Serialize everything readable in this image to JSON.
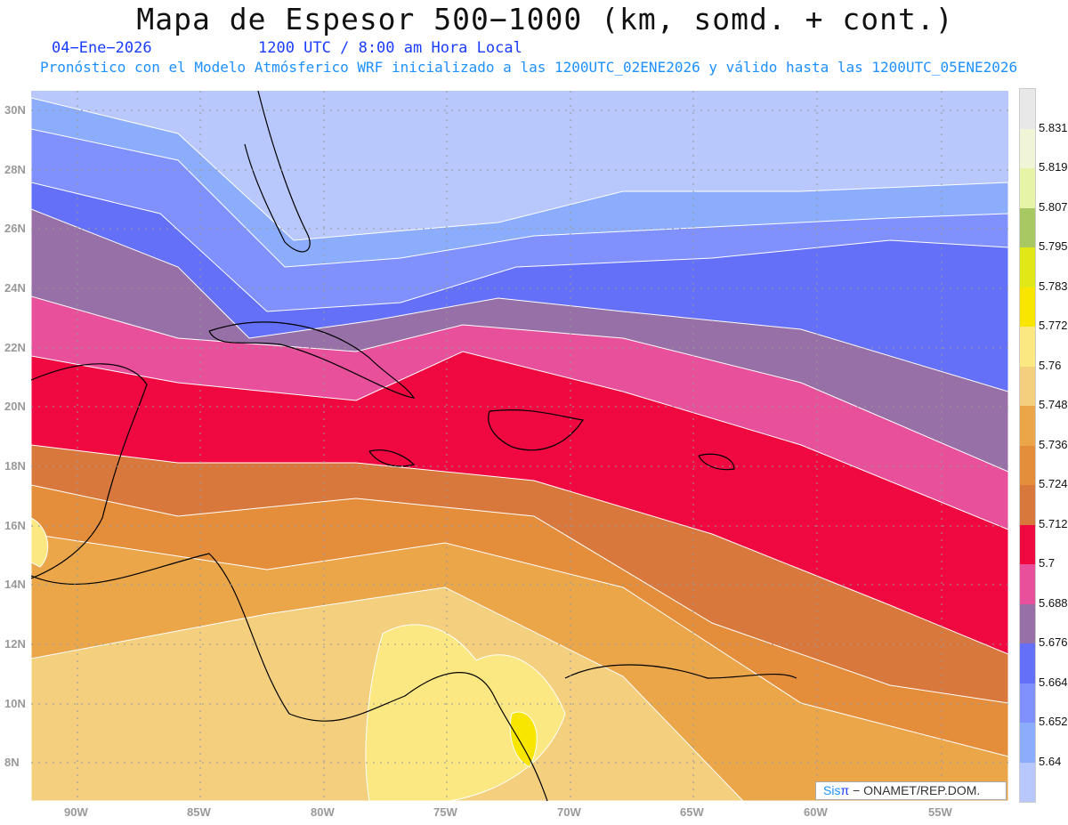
{
  "header": {
    "title": "Mapa de Espesor 500−1000 (km, somd. + cont.)",
    "date": "04−Ene−2026",
    "time": "1200 UTC / 8:00 am Hora Local",
    "subtitle": "Pronóstico con el Modelo Atmósferico WRF inicializado a las 1200UTC_02ENE2026 y válido hasta las  1200UTC_05ENE2026"
  },
  "axes": {
    "lat_labels": [
      "30N",
      "28N",
      "26N",
      "24N",
      "22N",
      "20N",
      "18N",
      "16N",
      "14N",
      "12N",
      "10N",
      "8N"
    ],
    "lon_labels": [
      "90W",
      "85W",
      "80W",
      "75W",
      "70W",
      "65W",
      "60W",
      "55W"
    ]
  },
  "legend": {
    "labels": [
      "5.831",
      "5.819",
      "5.807",
      "5.795",
      "5.783",
      "5.772",
      "5.76",
      "5.748",
      "5.736",
      "5.724",
      "5.712",
      "5.7",
      "5.688",
      "5.676",
      "5.664",
      "5.652",
      "5.64"
    ],
    "colors": [
      "#e8e8e8",
      "#eff5d6",
      "#e5f4a6",
      "#a8c864",
      "#e0e818",
      "#f8e600",
      "#fce882",
      "#f3cf7e",
      "#eba64a",
      "#e48e3c",
      "#d8783c",
      "#f00840",
      "#e8509c",
      "#9870a8",
      "#6470f8",
      "#8090fc",
      "#8cacfc",
      "#b8c8fc"
    ]
  },
  "credit": {
    "brand": "Sis",
    "pi": "π",
    "rest": " − ONAMET/REP.DOM."
  }
}
